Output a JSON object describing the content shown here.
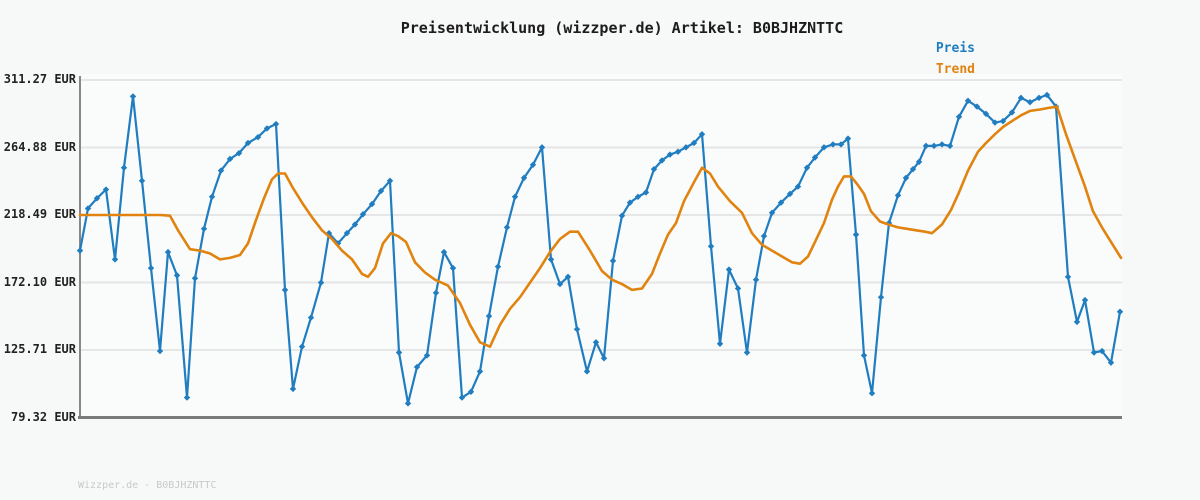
{
  "title": "Preisentwicklung (wizzper.de) Artikel: B0BJHZNTTC",
  "footer": "Wizzper.de - B0BJHZNTTC",
  "legend": [
    {
      "label": "Preis",
      "color": "#1f7dc0"
    },
    {
      "label": "Trend",
      "color": "#e0830f"
    }
  ],
  "colors": {
    "preis": "#1f7dc0",
    "trend": "#e0830f",
    "grid": "#e6e6e6",
    "axis": "#888888",
    "axis_bottom": "#7a7a7a",
    "title_text": "#1c1c1c",
    "tick_text": "#222222",
    "footer_text": "#c9c9c9"
  },
  "chart_data": {
    "type": "line",
    "title": "Preisentwicklung (wizzper.de) Artikel: B0BJHZNTTC",
    "unit": "EUR",
    "xlabel": "",
    "ylabel": "",
    "grid": true,
    "legend_position": "top-right",
    "ylim": [
      79.32,
      311.27
    ],
    "yticks": [
      311.27,
      264.88,
      218.49,
      172.1,
      125.71,
      79.32
    ],
    "ytick_labels": [
      "311.27 EUR",
      "264.88 EUR",
      "218.49 EUR",
      "172.10 EUR",
      "125.71 EUR",
      "79.32 EUR"
    ],
    "x_axis_labels": "none",
    "series": [
      {
        "name": "Preis",
        "color": "#1f7dc0",
        "marker": "diamond",
        "points_format": [
          "x_px",
          "eur"
        ],
        "points": [
          [
            80,
            194
          ],
          [
            88,
            223
          ],
          [
            97,
            230
          ],
          [
            106,
            236
          ],
          [
            115,
            188
          ],
          [
            124,
            251
          ],
          [
            133,
            300
          ],
          [
            142,
            242
          ],
          [
            151,
            182
          ],
          [
            160,
            125
          ],
          [
            168,
            193
          ],
          [
            177,
            177
          ],
          [
            187,
            93
          ],
          [
            195,
            175
          ],
          [
            204,
            209
          ],
          [
            212,
            231
          ],
          [
            221,
            249
          ],
          [
            230,
            257
          ],
          [
            239,
            261
          ],
          [
            248,
            268
          ],
          [
            258,
            272
          ],
          [
            267,
            278
          ],
          [
            276,
            281
          ],
          [
            285,
            167
          ],
          [
            293,
            99
          ],
          [
            302,
            128
          ],
          [
            311,
            148
          ],
          [
            321,
            172
          ],
          [
            329,
            206
          ],
          [
            338,
            199
          ],
          [
            347,
            206
          ],
          [
            355,
            212
          ],
          [
            363,
            219
          ],
          [
            372,
            226
          ],
          [
            381,
            235
          ],
          [
            390,
            242
          ],
          [
            399,
            124
          ],
          [
            408,
            89
          ],
          [
            417,
            114
          ],
          [
            427,
            122
          ],
          [
            436,
            165
          ],
          [
            444,
            193
          ],
          [
            453,
            182
          ],
          [
            462,
            93
          ],
          [
            471,
            97
          ],
          [
            480,
            111
          ],
          [
            489,
            149
          ],
          [
            498,
            183
          ],
          [
            507,
            210
          ],
          [
            515,
            231
          ],
          [
            524,
            244
          ],
          [
            533,
            253
          ],
          [
            542,
            265
          ],
          [
            551,
            188
          ],
          [
            560,
            171
          ],
          [
            568,
            176
          ],
          [
            577,
            140
          ],
          [
            587,
            111
          ],
          [
            596,
            131
          ],
          [
            604,
            120
          ],
          [
            613,
            187
          ],
          [
            622,
            218
          ],
          [
            630,
            227
          ],
          [
            638,
            231
          ],
          [
            646,
            234
          ],
          [
            654,
            250
          ],
          [
            662,
            256
          ],
          [
            670,
            260
          ],
          [
            678,
            262
          ],
          [
            686,
            265
          ],
          [
            694,
            268
          ],
          [
            702,
            274
          ],
          [
            711,
            197
          ],
          [
            720,
            130
          ],
          [
            729,
            181
          ],
          [
            738,
            168
          ],
          [
            747,
            124
          ],
          [
            756,
            174
          ],
          [
            764,
            204
          ],
          [
            772,
            220
          ],
          [
            781,
            227
          ],
          [
            790,
            233
          ],
          [
            798,
            238
          ],
          [
            807,
            251
          ],
          [
            815,
            258
          ],
          [
            824,
            265
          ],
          [
            833,
            267
          ],
          [
            841,
            267
          ],
          [
            848,
            271
          ],
          [
            856,
            205
          ],
          [
            864,
            122
          ],
          [
            872,
            96
          ],
          [
            881,
            162
          ],
          [
            889,
            213
          ],
          [
            898,
            232
          ],
          [
            906,
            244
          ],
          [
            913,
            250
          ],
          [
            919,
            255
          ],
          [
            926,
            266
          ],
          [
            934,
            266
          ],
          [
            942,
            267
          ],
          [
            950,
            266
          ],
          [
            959,
            286
          ],
          [
            968,
            297
          ],
          [
            977,
            293
          ],
          [
            986,
            288
          ],
          [
            995,
            282
          ],
          [
            1003,
            283
          ],
          [
            1012,
            289
          ],
          [
            1021,
            299
          ],
          [
            1030,
            296
          ],
          [
            1039,
            299
          ],
          [
            1047,
            301
          ],
          [
            1056,
            293
          ],
          [
            1068,
            176
          ],
          [
            1077,
            145
          ],
          [
            1085,
            160
          ],
          [
            1094,
            124
          ],
          [
            1102,
            125
          ],
          [
            1111,
            117
          ],
          [
            1120,
            152
          ]
        ]
      },
      {
        "name": "Trend",
        "color": "#e0830f",
        "marker": "none",
        "points_format": [
          "x_px",
          "eur"
        ],
        "points": [
          [
            80,
            218.49
          ],
          [
            100,
            218.49
          ],
          [
            120,
            218.49
          ],
          [
            140,
            218.49
          ],
          [
            160,
            218.49
          ],
          [
            170,
            218
          ],
          [
            178,
            208
          ],
          [
            190,
            195
          ],
          [
            200,
            194
          ],
          [
            210,
            192
          ],
          [
            220,
            188
          ],
          [
            230,
            189
          ],
          [
            240,
            191
          ],
          [
            248,
            199
          ],
          [
            256,
            215
          ],
          [
            264,
            230
          ],
          [
            272,
            243
          ],
          [
            278,
            247
          ],
          [
            285,
            247
          ],
          [
            293,
            237
          ],
          [
            303,
            226
          ],
          [
            313,
            216
          ],
          [
            322,
            208
          ],
          [
            332,
            202
          ],
          [
            342,
            194
          ],
          [
            352,
            188
          ],
          [
            362,
            178
          ],
          [
            368,
            176
          ],
          [
            375,
            182
          ],
          [
            383,
            199
          ],
          [
            391,
            206
          ],
          [
            398,
            204
          ],
          [
            406,
            200
          ],
          [
            415,
            186
          ],
          [
            425,
            179
          ],
          [
            435,
            174
          ],
          [
            448,
            170
          ],
          [
            460,
            158
          ],
          [
            470,
            143
          ],
          [
            480,
            131
          ],
          [
            490,
            128
          ],
          [
            500,
            143
          ],
          [
            510,
            154
          ],
          [
            520,
            162
          ],
          [
            530,
            172
          ],
          [
            540,
            182
          ],
          [
            550,
            193
          ],
          [
            560,
            202
          ],
          [
            570,
            207
          ],
          [
            578,
            207
          ],
          [
            590,
            194
          ],
          [
            602,
            180
          ],
          [
            612,
            174
          ],
          [
            622,
            171
          ],
          [
            632,
            167
          ],
          [
            642,
            168
          ],
          [
            652,
            178
          ],
          [
            660,
            192
          ],
          [
            668,
            205
          ],
          [
            676,
            213
          ],
          [
            684,
            228
          ],
          [
            694,
            241
          ],
          [
            702,
            251
          ],
          [
            710,
            247
          ],
          [
            718,
            238
          ],
          [
            730,
            228
          ],
          [
            742,
            220
          ],
          [
            752,
            206
          ],
          [
            762,
            198
          ],
          [
            772,
            194
          ],
          [
            782,
            190
          ],
          [
            792,
            186
          ],
          [
            800,
            185
          ],
          [
            808,
            190
          ],
          [
            815,
            200
          ],
          [
            824,
            213
          ],
          [
            832,
            229
          ],
          [
            838,
            238
          ],
          [
            844,
            245
          ],
          [
            851,
            245
          ],
          [
            858,
            239
          ],
          [
            864,
            233
          ],
          [
            871,
            221
          ],
          [
            880,
            214
          ],
          [
            888,
            212
          ],
          [
            898,
            210
          ],
          [
            907,
            209
          ],
          [
            916,
            208
          ],
          [
            925,
            207
          ],
          [
            932,
            206
          ],
          [
            942,
            212
          ],
          [
            951,
            222
          ],
          [
            959,
            234
          ],
          [
            968,
            249
          ],
          [
            978,
            262
          ],
          [
            986,
            268
          ],
          [
            995,
            274
          ],
          [
            1003,
            279
          ],
          [
            1012,
            283
          ],
          [
            1021,
            287
          ],
          [
            1030,
            290
          ],
          [
            1040,
            291
          ],
          [
            1048,
            292
          ],
          [
            1057,
            293
          ],
          [
            1066,
            274
          ],
          [
            1076,
            255
          ],
          [
            1085,
            238
          ],
          [
            1093,
            221
          ],
          [
            1102,
            210
          ],
          [
            1111,
            200
          ],
          [
            1121,
            189
          ]
        ]
      }
    ]
  }
}
